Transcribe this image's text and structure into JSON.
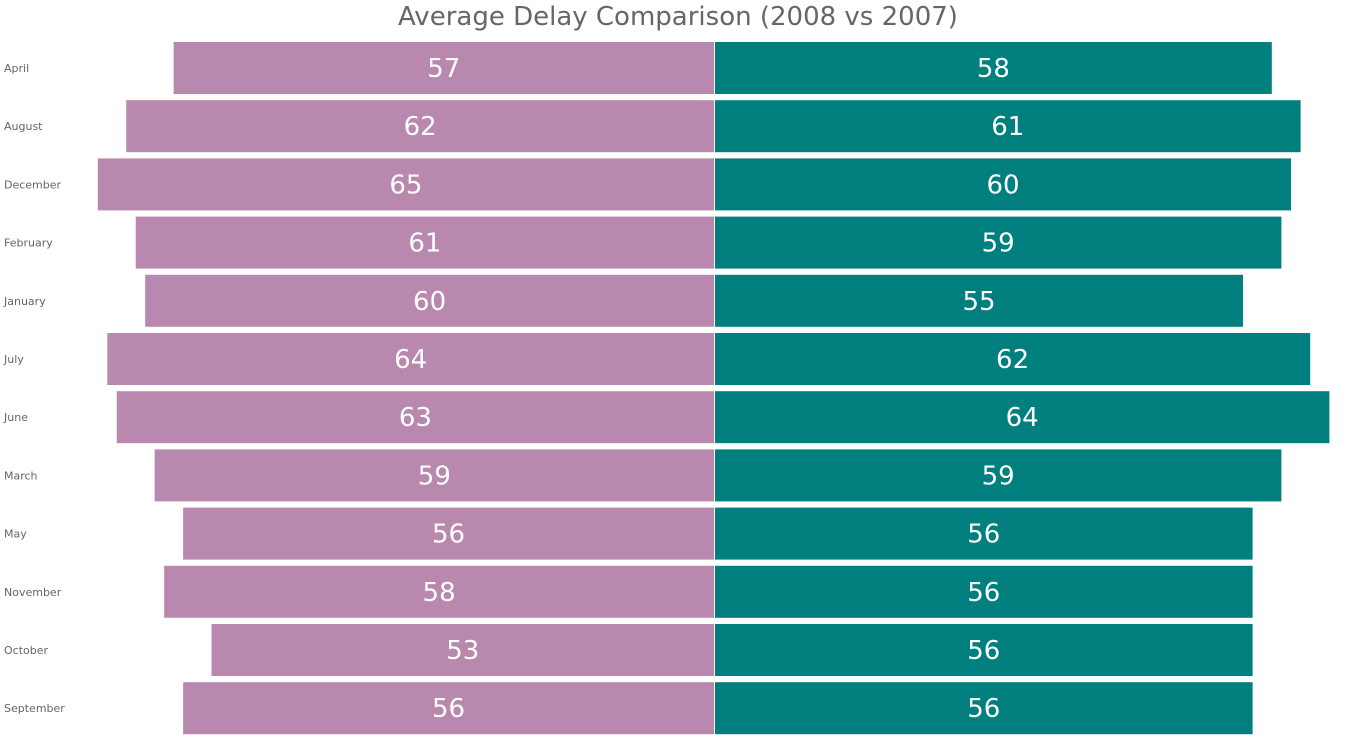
{
  "chart_data": {
    "type": "bar",
    "title": "Average Delay Comparison (2008 vs 2007)",
    "orientation": "horizontal-diverging",
    "categories": [
      "April",
      "August",
      "December",
      "February",
      "January",
      "July",
      "June",
      "March",
      "May",
      "November",
      "October",
      "September"
    ],
    "series": [
      {
        "values": [
          57,
          62,
          65,
          61,
          60,
          64,
          63,
          59,
          56,
          58,
          53,
          56
        ],
        "color": "#b988ae",
        "side": "left"
      },
      {
        "values": [
          58,
          61,
          60,
          59,
          55,
          62,
          64,
          59,
          56,
          56,
          56,
          56
        ],
        "color": "#007f7f",
        "side": "right"
      }
    ],
    "data_labels": "inside, white",
    "xlabel": "",
    "ylabel": "",
    "legend": "none",
    "grid": false
  }
}
